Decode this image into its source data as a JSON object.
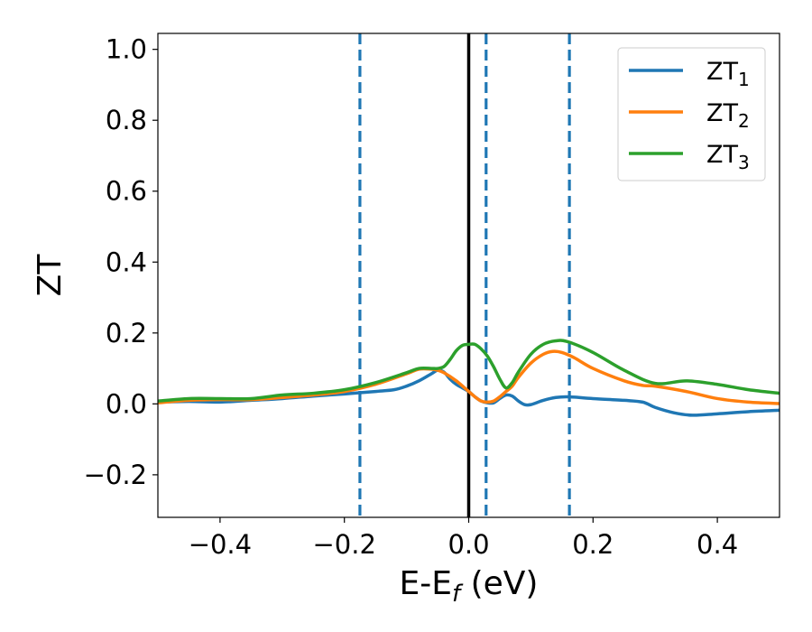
{
  "chart_data": {
    "type": "line",
    "title": "",
    "xlabel": {
      "main": "E-E",
      "sub": "f",
      "unit": " (eV)"
    },
    "ylabel": "ZT",
    "xlim": [
      -0.5,
      0.5
    ],
    "ylim": [
      -0.32,
      1.045
    ],
    "x_ticks": [
      -0.4,
      -0.2,
      0.0,
      0.2,
      0.4
    ],
    "x_tick_labels": [
      "−0.4",
      "−0.2",
      "0.0",
      "0.2",
      "0.4"
    ],
    "y_ticks": [
      -0.2,
      0.0,
      0.2,
      0.4,
      0.6,
      0.8,
      1.0
    ],
    "y_tick_labels": [
      "−0.2",
      "0.0",
      "0.2",
      "0.4",
      "0.6",
      "0.8",
      "1.0"
    ],
    "grid": false,
    "legend_position": "top-right",
    "colors": {
      "ZT1": "#1f77b4",
      "ZT2": "#ff7f0e",
      "ZT3": "#2ca02c",
      "fermi": "#000000",
      "marker": "#1f77b4"
    },
    "vertical_lines": [
      {
        "x": 0.0,
        "style": "solid",
        "color": "#000000"
      },
      {
        "x": -0.175,
        "style": "dashed",
        "color": "#1f77b4"
      },
      {
        "x": 0.028,
        "style": "dashed",
        "color": "#1f77b4"
      },
      {
        "x": 0.162,
        "style": "dashed",
        "color": "#1f77b4"
      }
    ],
    "series": [
      {
        "name": "ZT1",
        "legend_main": "ZT",
        "legend_sub": "1",
        "color": "#1f77b4",
        "points": [
          [
            -0.5,
            0.005
          ],
          [
            -0.45,
            0.007
          ],
          [
            -0.4,
            0.005
          ],
          [
            -0.35,
            0.01
          ],
          [
            -0.3,
            0.015
          ],
          [
            -0.25,
            0.022
          ],
          [
            -0.2,
            0.028
          ],
          [
            -0.15,
            0.035
          ],
          [
            -0.12,
            0.04
          ],
          [
            -0.1,
            0.05
          ],
          [
            -0.08,
            0.065
          ],
          [
            -0.06,
            0.085
          ],
          [
            -0.05,
            0.095
          ],
          [
            -0.04,
            0.09
          ],
          [
            -0.03,
            0.07
          ],
          [
            -0.02,
            0.055
          ],
          [
            -0.01,
            0.045
          ],
          [
            0.0,
            0.035
          ],
          [
            0.01,
            0.02
          ],
          [
            0.02,
            0.008
          ],
          [
            0.03,
            0.003
          ],
          [
            0.04,
            0.003
          ],
          [
            0.05,
            0.015
          ],
          [
            0.06,
            0.025
          ],
          [
            0.07,
            0.022
          ],
          [
            0.08,
            0.008
          ],
          [
            0.09,
            -0.002
          ],
          [
            0.1,
            -0.002
          ],
          [
            0.12,
            0.01
          ],
          [
            0.14,
            0.018
          ],
          [
            0.16,
            0.02
          ],
          [
            0.2,
            0.015
          ],
          [
            0.25,
            0.01
          ],
          [
            0.28,
            0.005
          ],
          [
            0.3,
            -0.01
          ],
          [
            0.33,
            -0.025
          ],
          [
            0.36,
            -0.032
          ],
          [
            0.4,
            -0.028
          ],
          [
            0.45,
            -0.022
          ],
          [
            0.5,
            -0.018
          ]
        ]
      },
      {
        "name": "ZT2",
        "legend_main": "ZT",
        "legend_sub": "2",
        "color": "#ff7f0e",
        "points": [
          [
            -0.5,
            0.003
          ],
          [
            -0.45,
            0.01
          ],
          [
            -0.4,
            0.012
          ],
          [
            -0.35,
            0.012
          ],
          [
            -0.3,
            0.018
          ],
          [
            -0.25,
            0.025
          ],
          [
            -0.2,
            0.035
          ],
          [
            -0.15,
            0.055
          ],
          [
            -0.1,
            0.085
          ],
          [
            -0.08,
            0.098
          ],
          [
            -0.06,
            0.098
          ],
          [
            -0.05,
            0.095
          ],
          [
            -0.04,
            0.088
          ],
          [
            -0.02,
            0.065
          ],
          [
            0.0,
            0.035
          ],
          [
            0.01,
            0.02
          ],
          [
            0.02,
            0.008
          ],
          [
            0.03,
            0.005
          ],
          [
            0.04,
            0.008
          ],
          [
            0.05,
            0.02
          ],
          [
            0.06,
            0.035
          ],
          [
            0.07,
            0.05
          ],
          [
            0.08,
            0.075
          ],
          [
            0.1,
            0.115
          ],
          [
            0.12,
            0.14
          ],
          [
            0.135,
            0.148
          ],
          [
            0.15,
            0.145
          ],
          [
            0.17,
            0.13
          ],
          [
            0.2,
            0.1
          ],
          [
            0.25,
            0.065
          ],
          [
            0.28,
            0.052
          ],
          [
            0.3,
            0.05
          ],
          [
            0.35,
            0.035
          ],
          [
            0.4,
            0.015
          ],
          [
            0.45,
            0.005
          ],
          [
            0.5,
            0.001
          ]
        ]
      },
      {
        "name": "ZT3",
        "legend_main": "ZT",
        "legend_sub": "3",
        "color": "#2ca02c",
        "points": [
          [
            -0.5,
            0.008
          ],
          [
            -0.45,
            0.015
          ],
          [
            -0.4,
            0.015
          ],
          [
            -0.35,
            0.015
          ],
          [
            -0.3,
            0.025
          ],
          [
            -0.25,
            0.03
          ],
          [
            -0.2,
            0.04
          ],
          [
            -0.15,
            0.06
          ],
          [
            -0.1,
            0.088
          ],
          [
            -0.08,
            0.1
          ],
          [
            -0.06,
            0.1
          ],
          [
            -0.05,
            0.1
          ],
          [
            -0.04,
            0.105
          ],
          [
            -0.03,
            0.125
          ],
          [
            -0.02,
            0.15
          ],
          [
            -0.01,
            0.165
          ],
          [
            0.0,
            0.168
          ],
          [
            0.01,
            0.168
          ],
          [
            0.02,
            0.155
          ],
          [
            0.03,
            0.135
          ],
          [
            0.04,
            0.105
          ],
          [
            0.05,
            0.07
          ],
          [
            0.06,
            0.045
          ],
          [
            0.07,
            0.06
          ],
          [
            0.08,
            0.09
          ],
          [
            0.1,
            0.14
          ],
          [
            0.12,
            0.168
          ],
          [
            0.14,
            0.178
          ],
          [
            0.16,
            0.175
          ],
          [
            0.2,
            0.145
          ],
          [
            0.25,
            0.095
          ],
          [
            0.3,
            0.058
          ],
          [
            0.35,
            0.065
          ],
          [
            0.4,
            0.055
          ],
          [
            0.45,
            0.04
          ],
          [
            0.5,
            0.03
          ]
        ]
      }
    ]
  }
}
